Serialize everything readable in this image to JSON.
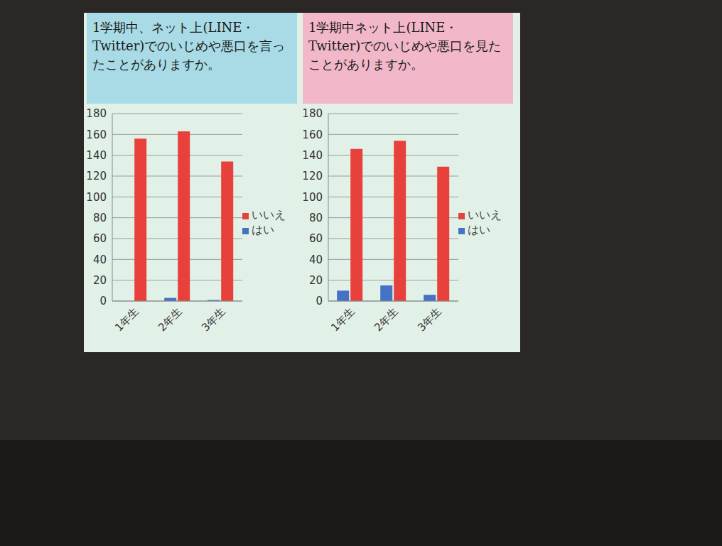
{
  "chart_data": [
    {
      "type": "bar",
      "title": "1学期中、ネット上(LINE・Twitter)でのいじめや悪口を言ったことがありますか。",
      "categories": [
        "1年生",
        "2年生",
        "3年生"
      ],
      "series": [
        {
          "name": "はい",
          "color": "#4472c4",
          "values": [
            0,
            3,
            1
          ]
        },
        {
          "name": "いいえ",
          "color": "#e8413b",
          "values": [
            156,
            163,
            134
          ]
        }
      ],
      "ylim": [
        0,
        180
      ],
      "yticks": [
        0,
        20,
        40,
        60,
        80,
        100,
        120,
        140,
        160,
        180
      ],
      "grid": true,
      "legend": "right"
    },
    {
      "type": "bar",
      "title": "1学期中ネット上(LINE・Twitter)でのいじめや悪口を見たことがありますか。",
      "categories": [
        "1年生",
        "2年生",
        "3年生"
      ],
      "series": [
        {
          "name": "はい",
          "color": "#4472c4",
          "values": [
            10,
            15,
            6
          ]
        },
        {
          "name": "いいえ",
          "color": "#e8413b",
          "values": [
            146,
            154,
            129
          ]
        }
      ],
      "ylim": [
        0,
        180
      ],
      "yticks": [
        0,
        20,
        40,
        60,
        80,
        100,
        120,
        140,
        160,
        180
      ],
      "grid": true,
      "legend": "right"
    }
  ]
}
